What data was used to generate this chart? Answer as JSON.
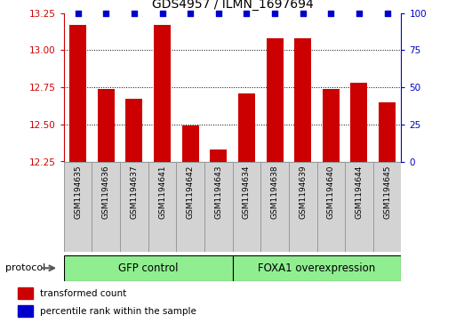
{
  "title": "GDS4957 / ILMN_1697694",
  "samples": [
    "GSM1194635",
    "GSM1194636",
    "GSM1194637",
    "GSM1194641",
    "GSM1194642",
    "GSM1194643",
    "GSM1194634",
    "GSM1194638",
    "GSM1194639",
    "GSM1194640",
    "GSM1194644",
    "GSM1194645"
  ],
  "bar_values": [
    13.17,
    12.74,
    12.67,
    13.17,
    12.49,
    12.33,
    12.71,
    13.08,
    13.08,
    12.74,
    12.78,
    12.65
  ],
  "percentile_values": [
    100,
    100,
    100,
    100,
    100,
    100,
    100,
    100,
    100,
    100,
    100,
    100
  ],
  "bar_color": "#cc0000",
  "dot_color": "#0000cc",
  "ylim_left": [
    12.25,
    13.25
  ],
  "ylim_right": [
    0,
    100
  ],
  "yticks_left": [
    12.25,
    12.5,
    12.75,
    13.0,
    13.25
  ],
  "yticks_right": [
    0,
    25,
    50,
    75,
    100
  ],
  "grid_values": [
    12.5,
    12.75,
    13.0
  ],
  "group1_label": "GFP control",
  "group2_label": "FOXA1 overexpression",
  "group1_count": 6,
  "group2_count": 6,
  "group_color": "#90ee90",
  "protocol_label": "protocol",
  "legend_bar_label": "transformed count",
  "legend_dot_label": "percentile rank within the sample",
  "bar_color_label": "#cc0000",
  "dot_color_label": "#0000cc",
  "bar_width": 0.6,
  "cell_bg": "#d3d3d3",
  "cell_border": "#999999"
}
